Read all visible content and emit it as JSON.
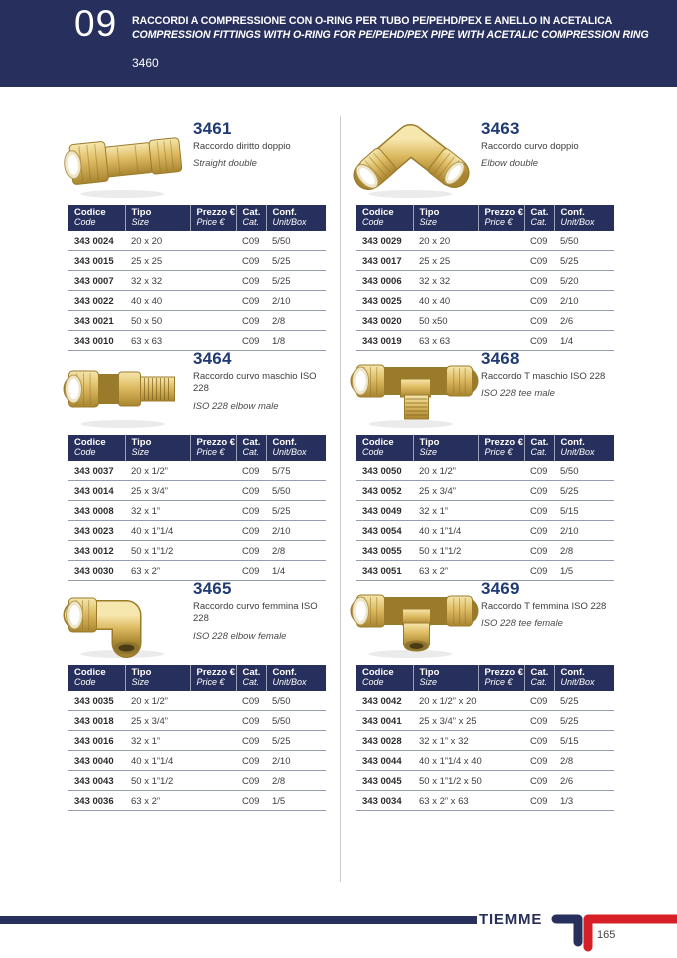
{
  "colors": {
    "navy": "#272f5c",
    "red": "#d61f26",
    "brass": "#d9b95c"
  },
  "header": {
    "chapter_number": "09",
    "title_it": "RACCORDI A COMPRESSIONE CON O-RING PER TUBO PE/PEHD/PEX E ANELLO IN ACETALICA",
    "title_en": "COMPRESSION FITTINGS WITH O-RING FOR PE/PEHD/PEX PIPE WITH ACETALIC COMPRESSION RING",
    "series_code": "3460"
  },
  "table_headers": {
    "codice": "Codice",
    "code": "Code",
    "tipo": "Tipo",
    "size": "Size",
    "prezzo": "Prezzo €",
    "price": "Price €",
    "cat_it": "Cat.",
    "cat_en": "Cat.",
    "conf": "Conf.",
    "unit_box": "Unit/Box"
  },
  "products": [
    {
      "model": "3461",
      "name_it": "Raccordo diritto doppio",
      "name_en": "Straight double",
      "image_icon": "straight-double-fitting",
      "rows": [
        {
          "code": "343 0024",
          "size": "20 x 20",
          "price": "",
          "cat": "C09",
          "conf": "5/50"
        },
        {
          "code": "343 0015",
          "size": "25 x 25",
          "price": "",
          "cat": "C09",
          "conf": "5/25"
        },
        {
          "code": "343 0007",
          "size": "32 x 32",
          "price": "",
          "cat": "C09",
          "conf": "5/25"
        },
        {
          "code": "343 0022",
          "size": "40 x 40",
          "price": "",
          "cat": "C09",
          "conf": "2/10"
        },
        {
          "code": "343 0021",
          "size": "50 x 50",
          "price": "",
          "cat": "C09",
          "conf": "2/8"
        },
        {
          "code": "343 0010",
          "size": "63 x 63",
          "price": "",
          "cat": "C09",
          "conf": "1/8"
        }
      ]
    },
    {
      "model": "3463",
      "name_it": "Raccordo curvo doppio",
      "name_en": "Elbow double",
      "image_icon": "elbow-double-fitting",
      "rows": [
        {
          "code": "343 0029",
          "size": "20 x 20",
          "price": "",
          "cat": "C09",
          "conf": "5/50"
        },
        {
          "code": "343 0017",
          "size": "25 x 25",
          "price": "",
          "cat": "C09",
          "conf": "5/25"
        },
        {
          "code": "343 0006",
          "size": "32 x 32",
          "price": "",
          "cat": "C09",
          "conf": "5/20"
        },
        {
          "code": "343 0025",
          "size": "40 x 40",
          "price": "",
          "cat": "C09",
          "conf": "2/10"
        },
        {
          "code": "343 0020",
          "size": "50 x50",
          "price": "",
          "cat": "C09",
          "conf": "2/6"
        },
        {
          "code": "343 0019",
          "size": "63 x 63",
          "price": "",
          "cat": "C09",
          "conf": "1/4"
        }
      ]
    },
    {
      "model": "3464",
      "name_it": "Raccordo curvo maschio ISO 228",
      "name_en": "ISO 228 elbow male",
      "image_icon": "elbow-male-fitting",
      "rows": [
        {
          "code": "343 0037",
          "size": "20 x 1/2”",
          "price": "",
          "cat": "C09",
          "conf": "5/75"
        },
        {
          "code": "343 0014",
          "size": "25 x 3/4”",
          "price": "",
          "cat": "C09",
          "conf": "5/50"
        },
        {
          "code": "343 0008",
          "size": "32 x 1”",
          "price": "",
          "cat": "C09",
          "conf": "5/25"
        },
        {
          "code": "343 0023",
          "size": "40 x 1”1/4",
          "price": "",
          "cat": "C09",
          "conf": "2/10"
        },
        {
          "code": "343 0012",
          "size": "50 x 1”1/2",
          "price": "",
          "cat": "C09",
          "conf": "2/8"
        },
        {
          "code": "343 0030",
          "size": "63 x 2”",
          "price": "",
          "cat": "C09",
          "conf": "1/4"
        }
      ]
    },
    {
      "model": "3468",
      "name_it": "Raccordo T maschio ISO 228",
      "name_en": "ISO 228 tee male",
      "image_icon": "tee-male-fitting",
      "rows": [
        {
          "code": "343 0050",
          "size": "20 x 1/2”",
          "price": "",
          "cat": "C09",
          "conf": "5/50"
        },
        {
          "code": "343 0052",
          "size": "25 x 3/4”",
          "price": "",
          "cat": "C09",
          "conf": "5/25"
        },
        {
          "code": "343 0049",
          "size": "32 x 1”",
          "price": "",
          "cat": "C09",
          "conf": "5/15"
        },
        {
          "code": "343 0054",
          "size": "40 x 1”1/4",
          "price": "",
          "cat": "C09",
          "conf": "2/10"
        },
        {
          "code": "343 0055",
          "size": "50 x 1”1/2",
          "price": "",
          "cat": "C09",
          "conf": "2/8"
        },
        {
          "code": "343 0051",
          "size": "63 x 2”",
          "price": "",
          "cat": "C09",
          "conf": "1/5"
        }
      ]
    },
    {
      "model": "3465",
      "name_it": "Raccordo curvo femmina ISO 228",
      "name_en": "ISO 228 elbow female",
      "image_icon": "elbow-female-fitting",
      "rows": [
        {
          "code": "343 0035",
          "size": "20 x 1/2”",
          "price": "",
          "cat": "C09",
          "conf": "5/50"
        },
        {
          "code": "343 0018",
          "size": "25 x 3/4”",
          "price": "",
          "cat": "C09",
          "conf": "5/50"
        },
        {
          "code": "343 0016",
          "size": "32 x 1”",
          "price": "",
          "cat": "C09",
          "conf": "5/25"
        },
        {
          "code": "343 0040",
          "size": "40 x 1”1/4",
          "price": "",
          "cat": "C09",
          "conf": "2/10"
        },
        {
          "code": "343 0043",
          "size": "50 x 1”1/2",
          "price": "",
          "cat": "C09",
          "conf": "2/8"
        },
        {
          "code": "343 0036",
          "size": "63 x 2”",
          "price": "",
          "cat": "C09",
          "conf": "1/5"
        }
      ]
    },
    {
      "model": "3469",
      "name_it": "Raccordo T femmina ISO 228",
      "name_en": "ISO 228 tee female",
      "image_icon": "tee-female-fitting",
      "rows": [
        {
          "code": "343 0042",
          "size": "20 x 1/2” x 20",
          "price": "",
          "cat": "C09",
          "conf": "5/25"
        },
        {
          "code": "343 0041",
          "size": "25 x 3/4” x 25",
          "price": "",
          "cat": "C09",
          "conf": "5/25"
        },
        {
          "code": "343 0028",
          "size": "32 x 1” x 32",
          "price": "",
          "cat": "C09",
          "conf": "5/15"
        },
        {
          "code": "343 0044",
          "size": "40 x 1”1/4 x 40",
          "price": "",
          "cat": "C09",
          "conf": "2/8"
        },
        {
          "code": "343 0045",
          "size": "50 x 1”1/2 x 50",
          "price": "",
          "cat": "C09",
          "conf": "2/6"
        },
        {
          "code": "343 0034",
          "size": "63 x 2” x 63",
          "price": "",
          "cat": "C09",
          "conf": "1/3"
        }
      ]
    }
  ],
  "footer": {
    "brand": "TIEMME",
    "page_number": "165"
  }
}
